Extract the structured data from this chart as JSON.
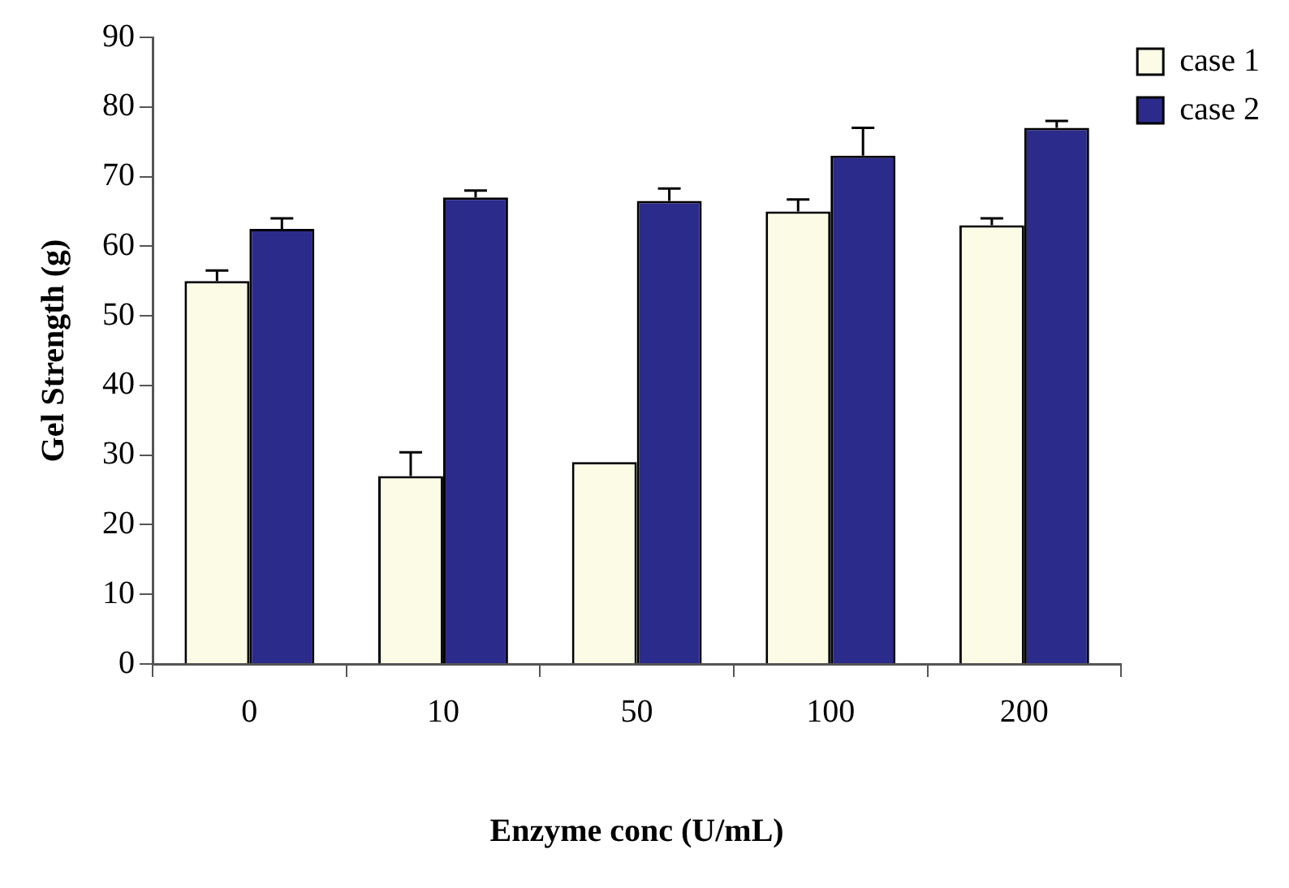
{
  "chart_data": {
    "type": "bar",
    "xlabel": "Enzyme conc (U/mL)",
    "ylabel": "Gel Strength (g)",
    "categories": [
      "0",
      "10",
      "50",
      "100",
      "200"
    ],
    "series": [
      {
        "name": "case 1",
        "color": "#fbfbe6",
        "values": [
          55,
          27,
          29,
          65,
          63
        ],
        "errors": [
          [
            55,
            56.5
          ],
          [
            27,
            30.4
          ],
          null,
          [
            65,
            66.7
          ],
          [
            63,
            64
          ]
        ]
      },
      {
        "name": "case 2",
        "color": "#2b2b8c",
        "values": [
          62.5,
          67,
          66.5,
          73,
          77
        ],
        "errors": [
          [
            62.5,
            64
          ],
          [
            67,
            68
          ],
          [
            66.5,
            68.3
          ],
          [
            73,
            77
          ],
          [
            77,
            78
          ]
        ]
      }
    ],
    "ylim": [
      0,
      90
    ],
    "yticks": [
      0,
      10,
      20,
      30,
      40,
      50,
      60,
      70,
      80,
      90
    ],
    "grid": false,
    "legend": "top right"
  }
}
